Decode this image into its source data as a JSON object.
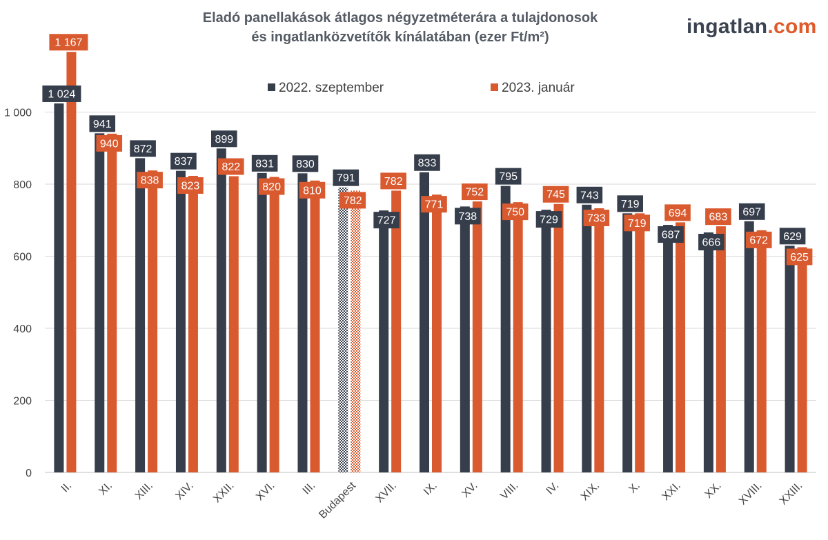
{
  "brand": {
    "logo_part1": "ingatlan",
    "logo_part2": ".com",
    "accent": "#e05a2b",
    "dark": "#3b4350"
  },
  "chart_data": {
    "type": "bar",
    "title_line1": "Eladó panellakások átlagos négyzetméterára a tulajdonosok",
    "title_line2": "és ingatlanközvetítők kínálatában (ezer Ft/m²)",
    "categories": [
      "II.",
      "XI.",
      "XIII.",
      "XIV.",
      "XXII.",
      "XVI.",
      "III.",
      "Budapest",
      "XVII.",
      "IX.",
      "XV.",
      "VIII.",
      "IV.",
      "XIX.",
      "X.",
      "XXI.",
      "XX.",
      "XVIII.",
      "XXIII."
    ],
    "series": [
      {
        "name": "2022. szeptember",
        "color": "#363d4b",
        "values": [
          1024,
          941,
          872,
          837,
          899,
          831,
          830,
          791,
          727,
          833,
          738,
          795,
          729,
          743,
          719,
          687,
          666,
          697,
          629
        ],
        "labels": [
          "1 024",
          "941",
          "872",
          "837",
          "899",
          "831",
          "830",
          "791",
          "727",
          "833",
          "738",
          "795",
          "729",
          "743",
          "719",
          "687",
          "666",
          "697",
          "629"
        ]
      },
      {
        "name": "2023. január",
        "color": "#d95a2f",
        "values": [
          1167,
          940,
          838,
          823,
          822,
          820,
          810,
          782,
          782,
          771,
          752,
          750,
          745,
          733,
          719,
          694,
          683,
          672,
          625
        ],
        "labels": [
          "1 167",
          "940",
          "838",
          "823",
          "822",
          "820",
          "810",
          "782",
          "782",
          "771",
          "752",
          "750",
          "745",
          "733",
          "719",
          "694",
          "683",
          "672",
          "625"
        ]
      }
    ],
    "highlight_category": "Budapest",
    "y_ticks": [
      0,
      200,
      400,
      600,
      800,
      1000
    ],
    "y_tick_labels": [
      "0",
      "200",
      "400",
      "600",
      "800",
      "1 000"
    ],
    "ylim": [
      0,
      1200
    ],
    "grid": true,
    "legend_position": "top-center"
  }
}
